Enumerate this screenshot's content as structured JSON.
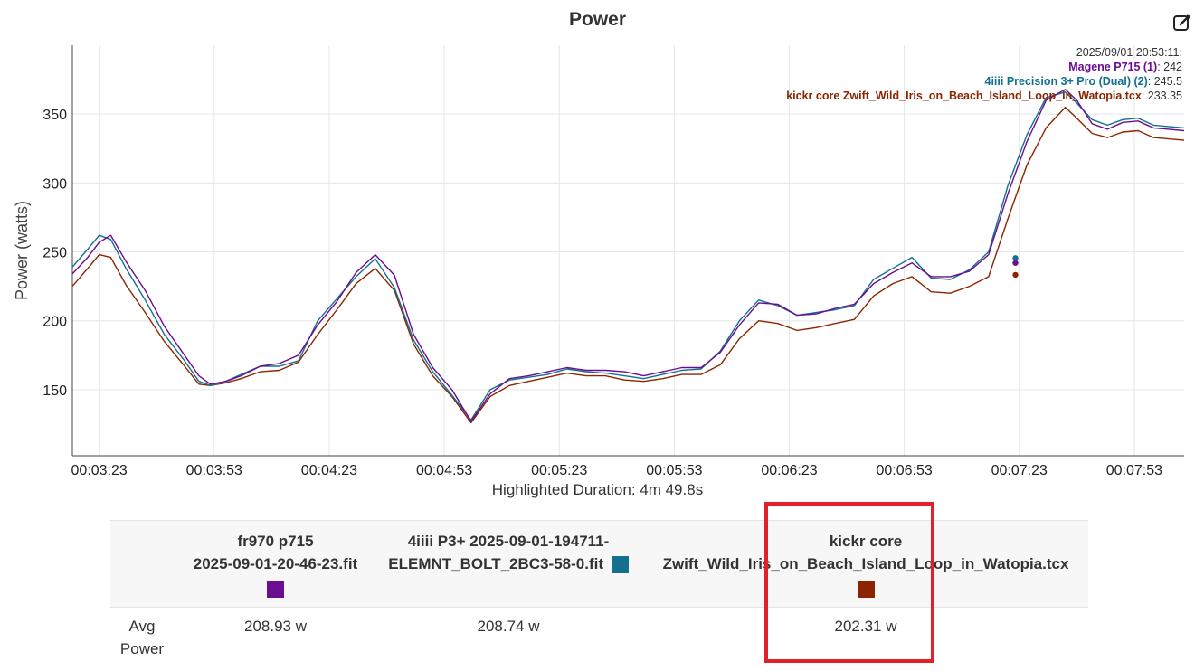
{
  "title": "Power",
  "icons": {
    "edit": "edit-icon"
  },
  "chart_data": {
    "type": "line",
    "ylabel": "Power (watts)",
    "xlabel": "",
    "ylim": [
      102,
      400
    ],
    "yticks": [
      150,
      200,
      250,
      300,
      350
    ],
    "xtick_labels": [
      "00:03:23",
      "00:03:53",
      "00:04:23",
      "00:04:53",
      "00:05:23",
      "00:05:53",
      "00:06:23",
      "00:06:53",
      "00:07:23",
      "00:07:53"
    ],
    "x_start_seconds": 196,
    "x_end_seconds": 486,
    "first_tick_seconds": 203,
    "tick_step_seconds": 30,
    "grid": true,
    "x": [
      196,
      200,
      203,
      206,
      210,
      215,
      220,
      225,
      229,
      232,
      236,
      240,
      245,
      250,
      255,
      260,
      265,
      270,
      275,
      280,
      285,
      290,
      295,
      300,
      305,
      310,
      315,
      320,
      325,
      330,
      335,
      340,
      345,
      350,
      355,
      360,
      365,
      370,
      375,
      380,
      385,
      390,
      395,
      400,
      405,
      410,
      415,
      420,
      425,
      430,
      435,
      440,
      445,
      450,
      455,
      458,
      462,
      466,
      470,
      474,
      478,
      482,
      486
    ],
    "series": [
      {
        "name": "Magene P715 (1)",
        "color": "#6a0d91",
        "values": [
          234,
          246,
          257,
          262,
          243,
          222,
          196,
          176,
          160,
          154,
          156,
          160,
          167,
          169,
          175,
          197,
          214,
          235,
          248,
          233,
          190,
          166,
          150,
          127,
          147,
          158,
          160,
          163,
          166,
          164,
          164,
          163,
          160,
          163,
          166,
          166,
          177,
          197,
          213,
          212,
          204,
          205,
          209,
          212,
          227,
          235,
          242,
          232,
          232,
          236,
          248,
          292,
          330,
          360,
          368,
          360,
          343,
          339,
          344,
          345,
          340,
          339,
          338
        ]
      },
      {
        "name": "4iiii Precision 3+ Pro (Dual) (2)",
        "color": "#13708f",
        "values": [
          239,
          252,
          262,
          259,
          238,
          215,
          190,
          172,
          156,
          153,
          156,
          161,
          167,
          167,
          171,
          200,
          216,
          232,
          245,
          224,
          186,
          163,
          146,
          128,
          150,
          157,
          159,
          161,
          165,
          163,
          162,
          160,
          158,
          161,
          164,
          165,
          178,
          200,
          215,
          211,
          204,
          206,
          208,
          211,
          230,
          238,
          246,
          231,
          230,
          237,
          250,
          298,
          335,
          362,
          366,
          358,
          346,
          342,
          346,
          347,
          342,
          341,
          340
        ]
      },
      {
        "name": "kickr core Zwift_Wild_Iris_on_Beach_Island_Loop_in_Watopia.tcx",
        "color": "#8b2500",
        "values": [
          225,
          238,
          248,
          246,
          226,
          206,
          185,
          168,
          154,
          153,
          155,
          158,
          163,
          164,
          170,
          190,
          208,
          227,
          238,
          222,
          183,
          160,
          145,
          126,
          145,
          153,
          156,
          159,
          162,
          160,
          160,
          157,
          156,
          158,
          161,
          161,
          168,
          187,
          200,
          198,
          193,
          195,
          198,
          201,
          218,
          227,
          232,
          221,
          220,
          225,
          232,
          274,
          313,
          340,
          355,
          347,
          336,
          333,
          337,
          338,
          333,
          332,
          331
        ]
      }
    ],
    "hover": {
      "time": "2025/09/01 20:53:11:",
      "x_seconds": 442,
      "values": [
        "242",
        "245.5",
        "233.35"
      ]
    }
  },
  "highlighted_duration": "Highlighted Duration: 4m 49.8s",
  "summary": {
    "files": [
      {
        "line1": "fr970 p715",
        "line2": "2025-09-01-20-46-23.fit",
        "color": "#6a0d91"
      },
      {
        "line1": "4iiii P3+ 2025-09-01-194711-",
        "line2": "ELEMNT_BOLT_2BC3-58-0.fit",
        "color": "#13708f"
      },
      {
        "line1": "kickr core",
        "line2": "Zwift_Wild_Iris_on_Beach_Island_Loop_in_Watopia.tcx",
        "color": "#8b2500"
      }
    ],
    "row_label_line1": "Avg",
    "row_label_line2": "Power",
    "avg_power": [
      "208.93 w",
      "208.74 w",
      "202.31 w"
    ]
  }
}
